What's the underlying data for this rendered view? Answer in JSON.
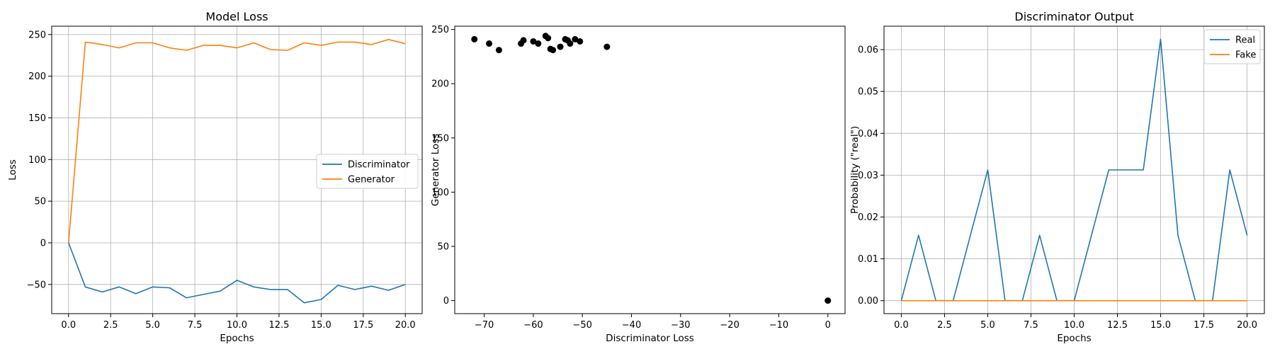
{
  "chart_data": [
    {
      "type": "line",
      "title": "Model Loss",
      "xlabel": "Epochs",
      "ylabel": "Loss",
      "xlim": [
        -1,
        21
      ],
      "ylim": [
        -85,
        260
      ],
      "xticks": [
        0,
        2.5,
        5,
        7.5,
        10,
        12.5,
        15,
        17.5,
        20
      ],
      "xtick_labels": [
        "0.0",
        "2.5",
        "5.0",
        "7.5",
        "10.0",
        "12.5",
        "15.0",
        "17.5",
        "20.0"
      ],
      "yticks": [
        -50,
        0,
        50,
        100,
        150,
        200,
        250
      ],
      "ytick_labels": [
        "−50",
        "0",
        "50",
        "100",
        "150",
        "200",
        "250"
      ],
      "grid": true,
      "legend": "center-right",
      "x": [
        0,
        1,
        2,
        3,
        4,
        5,
        6,
        7,
        8,
        9,
        10,
        11,
        12,
        13,
        14,
        15,
        16,
        17,
        18,
        19,
        20
      ],
      "series": [
        {
          "name": "Discriminator",
          "color": "#1f77b4",
          "values": [
            0,
            -53,
            -59,
            -53,
            -61,
            -53,
            -54,
            -66,
            -62,
            -58,
            -45,
            -53,
            -56,
            -56,
            -72,
            -68,
            -51,
            -56,
            -52,
            -57,
            -50
          ]
        },
        {
          "name": "Generator",
          "color": "#ff7f0e",
          "values": [
            0,
            241,
            238,
            234,
            240,
            240,
            234,
            231,
            237,
            237,
            234,
            240,
            232,
            231,
            240,
            237,
            241,
            241,
            238,
            244,
            239
          ]
        }
      ]
    },
    {
      "type": "scatter",
      "title": "",
      "xlabel": "Discriminator Loss",
      "ylabel": "Generator Loss",
      "xlim": [
        -76,
        3.5
      ],
      "ylim": [
        -12,
        253
      ],
      "xticks": [
        -70,
        -60,
        -50,
        -40,
        -30,
        -20,
        -10,
        0
      ],
      "xtick_labels": [
        "−70",
        "−60",
        "−50",
        "−40",
        "−30",
        "−20",
        "−10",
        "0"
      ],
      "yticks": [
        0,
        50,
        100,
        150,
        200,
        250
      ],
      "ytick_labels": [
        "0",
        "50",
        "100",
        "150",
        "200",
        "250"
      ],
      "grid": false,
      "color": "#000000",
      "points": [
        [
          0,
          0
        ],
        [
          -72,
          241
        ],
        [
          -69,
          237
        ],
        [
          -67,
          231
        ],
        [
          -62.5,
          237
        ],
        [
          -62,
          240
        ],
        [
          -60,
          239
        ],
        [
          -59,
          237
        ],
        [
          -57.5,
          244
        ],
        [
          -57,
          242
        ],
        [
          -56.5,
          232
        ],
        [
          -56,
          231
        ],
        [
          -54.5,
          234
        ],
        [
          -53.5,
          241
        ],
        [
          -53,
          240
        ],
        [
          -52.5,
          237
        ],
        [
          -51.5,
          241
        ],
        [
          -50.5,
          239
        ],
        [
          -45,
          234
        ]
      ]
    },
    {
      "type": "line",
      "title": "Discriminator Output",
      "xlabel": "Epochs",
      "ylabel": "Probability (\"real\")",
      "xlim": [
        -1,
        21
      ],
      "ylim": [
        -0.0031,
        0.0656
      ],
      "xticks": [
        0,
        2.5,
        5,
        7.5,
        10,
        12.5,
        15,
        17.5,
        20
      ],
      "xtick_labels": [
        "0.0",
        "2.5",
        "5.0",
        "7.5",
        "10.0",
        "12.5",
        "15.0",
        "17.5",
        "20.0"
      ],
      "yticks": [
        0,
        0.01,
        0.02,
        0.03,
        0.04,
        0.05,
        0.06
      ],
      "ytick_labels": [
        "0.00",
        "0.01",
        "0.02",
        "0.03",
        "0.04",
        "0.05",
        "0.06"
      ],
      "grid": true,
      "legend": "top-right",
      "x": [
        0,
        1,
        2,
        3,
        4,
        5,
        6,
        7,
        8,
        9,
        10,
        11,
        12,
        13,
        14,
        15,
        16,
        17,
        18,
        19,
        20
      ],
      "series": [
        {
          "name": "Real",
          "color": "#1f77b4",
          "values": [
            0,
            0.015625,
            0,
            0,
            0.015625,
            0.03125,
            0,
            0,
            0.015625,
            0,
            0,
            0.015625,
            0.03125,
            0.03125,
            0.03125,
            0.0625,
            0.015625,
            0,
            0,
            0.03125,
            0.015625
          ]
        },
        {
          "name": "Fake",
          "color": "#ff7f0e",
          "values": [
            0,
            0,
            0,
            0,
            0,
            0,
            0,
            0,
            0,
            0,
            0,
            0,
            0,
            0,
            0,
            0,
            0,
            0,
            0,
            0,
            0
          ]
        }
      ]
    }
  ]
}
